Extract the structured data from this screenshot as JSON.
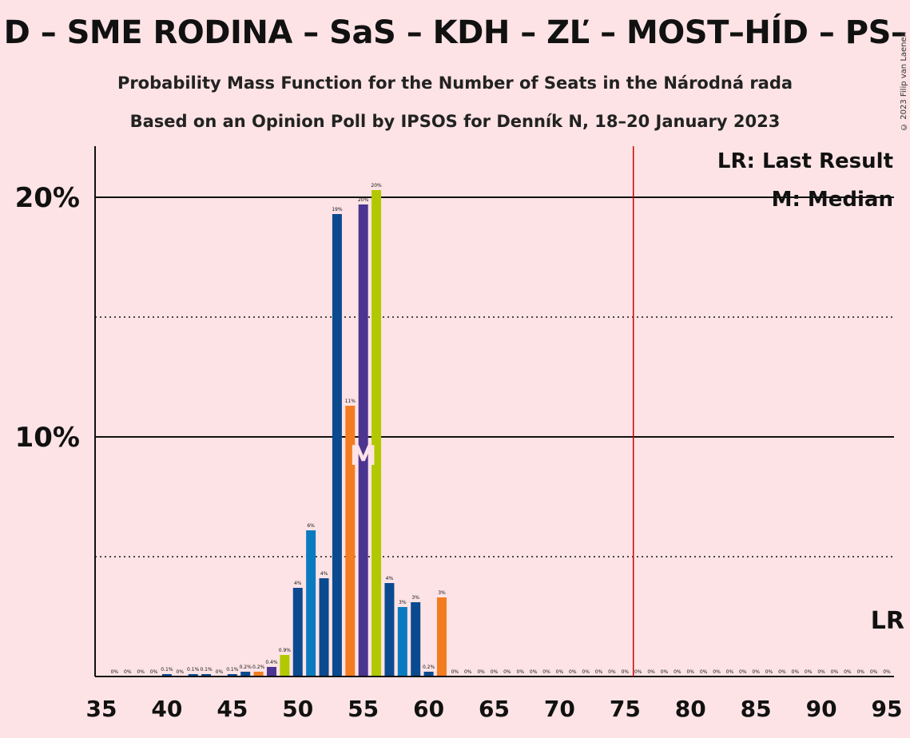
{
  "title": "D – SME RODINA – SaS – KDH – ZĽ – MOST–HÍD – PS–",
  "subtitle1": "Probability Mass Function for the Number of Seats in the Národná rada",
  "subtitle2": "Based on an Opinion Poll by IPSOS for Denník N, 18–20 January 2023",
  "copyright": "© 2023 Filip van Laenen",
  "legend": {
    "lr": "LR: Last Result",
    "median": "M: Median"
  },
  "lr_label": "LR",
  "median_label": "M",
  "colors": {
    "background": "#fde3e5",
    "dark_blue": "#0b4a8f",
    "light_blue": "#0b7bc0",
    "purple": "#4b3590",
    "orange": "#f47c20",
    "lime": "#b2c800",
    "last_result_line": "#cc0000"
  },
  "chart_data": {
    "type": "bar",
    "xlim": [
      35,
      95
    ],
    "ylim": [
      0,
      22
    ],
    "yticks": [
      {
        "value": 10,
        "label": "10%"
      },
      {
        "value": 20,
        "label": "20%"
      }
    ],
    "dotted_lines": [
      5,
      15
    ],
    "xticks": [
      35,
      40,
      45,
      50,
      55,
      60,
      65,
      70,
      75,
      80,
      85,
      90,
      95
    ],
    "last_result": 76,
    "median": 55,
    "bars": [
      {
        "x": 36,
        "value": 0,
        "label": "0%",
        "color": "dark_blue"
      },
      {
        "x": 37,
        "value": 0,
        "label": "0%",
        "color": "dark_blue"
      },
      {
        "x": 38,
        "value": 0,
        "label": "0%",
        "color": "dark_blue"
      },
      {
        "x": 39,
        "value": 0,
        "label": "0%",
        "color": "dark_blue"
      },
      {
        "x": 40,
        "value": 0.1,
        "label": "0.1%",
        "color": "dark_blue"
      },
      {
        "x": 41,
        "value": 0,
        "label": "0%",
        "color": "dark_blue"
      },
      {
        "x": 42,
        "value": 0.1,
        "label": "0.1%",
        "color": "dark_blue"
      },
      {
        "x": 43,
        "value": 0.1,
        "label": "0.1%",
        "color": "dark_blue"
      },
      {
        "x": 44,
        "value": 0,
        "label": "0%",
        "color": "dark_blue"
      },
      {
        "x": 45,
        "value": 0.1,
        "label": "0.1%",
        "color": "dark_blue"
      },
      {
        "x": 46,
        "value": 0.2,
        "label": "0.2%",
        "color": "dark_blue"
      },
      {
        "x": 47,
        "value": 0.2,
        "label": "0.2%",
        "color": "orange"
      },
      {
        "x": 48,
        "value": 0.4,
        "label": "0.4%",
        "color": "purple"
      },
      {
        "x": 49,
        "value": 0.9,
        "label": "0.9%",
        "color": "lime"
      },
      {
        "x": 50,
        "value": 3.7,
        "label": "4%",
        "color": "dark_blue"
      },
      {
        "x": 51,
        "value": 6.1,
        "label": "6%",
        "color": "light_blue"
      },
      {
        "x": 52,
        "value": 4.1,
        "label": "4%",
        "color": "dark_blue"
      },
      {
        "x": 53,
        "value": 19.3,
        "label": "19%",
        "color": "dark_blue"
      },
      {
        "x": 54,
        "value": 11.3,
        "label": "11%",
        "color": "orange"
      },
      {
        "x": 55,
        "value": 19.7,
        "label": "20%",
        "color": "purple"
      },
      {
        "x": 56,
        "value": 20.3,
        "label": "20%",
        "color": "lime"
      },
      {
        "x": 57,
        "value": 3.9,
        "label": "4%",
        "color": "dark_blue"
      },
      {
        "x": 58,
        "value": 2.9,
        "label": "3%",
        "color": "light_blue"
      },
      {
        "x": 59,
        "value": 3.1,
        "label": "3%",
        "color": "dark_blue"
      },
      {
        "x": 60,
        "value": 0.2,
        "label": "0.2%",
        "color": "dark_blue"
      },
      {
        "x": 61,
        "value": 3.3,
        "label": "3%",
        "color": "orange"
      },
      {
        "x": 62,
        "value": 0,
        "label": "0%",
        "color": "dark_blue"
      },
      {
        "x": 63,
        "value": 0,
        "label": "0%",
        "color": "dark_blue"
      },
      {
        "x": 64,
        "value": 0,
        "label": "0%",
        "color": "dark_blue"
      },
      {
        "x": 65,
        "value": 0,
        "label": "0%",
        "color": "dark_blue"
      },
      {
        "x": 66,
        "value": 0,
        "label": "0%",
        "color": "dark_blue"
      },
      {
        "x": 67,
        "value": 0,
        "label": "0%",
        "color": "dark_blue"
      },
      {
        "x": 68,
        "value": 0,
        "label": "0%",
        "color": "dark_blue"
      },
      {
        "x": 69,
        "value": 0,
        "label": "0%",
        "color": "dark_blue"
      },
      {
        "x": 70,
        "value": 0,
        "label": "0%",
        "color": "dark_blue"
      },
      {
        "x": 71,
        "value": 0,
        "label": "0%",
        "color": "dark_blue"
      },
      {
        "x": 72,
        "value": 0,
        "label": "0%",
        "color": "dark_blue"
      },
      {
        "x": 73,
        "value": 0,
        "label": "0%",
        "color": "dark_blue"
      },
      {
        "x": 74,
        "value": 0,
        "label": "0%",
        "color": "dark_blue"
      },
      {
        "x": 75,
        "value": 0,
        "label": "0%",
        "color": "dark_blue"
      },
      {
        "x": 76,
        "value": 0,
        "label": "0%",
        "color": "dark_blue"
      },
      {
        "x": 77,
        "value": 0,
        "label": "0%",
        "color": "dark_blue"
      },
      {
        "x": 78,
        "value": 0,
        "label": "0%",
        "color": "dark_blue"
      },
      {
        "x": 79,
        "value": 0,
        "label": "0%",
        "color": "dark_blue"
      },
      {
        "x": 80,
        "value": 0,
        "label": "0%",
        "color": "dark_blue"
      },
      {
        "x": 81,
        "value": 0,
        "label": "0%",
        "color": "dark_blue"
      },
      {
        "x": 82,
        "value": 0,
        "label": "0%",
        "color": "dark_blue"
      },
      {
        "x": 83,
        "value": 0,
        "label": "0%",
        "color": "dark_blue"
      },
      {
        "x": 84,
        "value": 0,
        "label": "0%",
        "color": "dark_blue"
      },
      {
        "x": 85,
        "value": 0,
        "label": "0%",
        "color": "dark_blue"
      },
      {
        "x": 86,
        "value": 0,
        "label": "0%",
        "color": "dark_blue"
      },
      {
        "x": 87,
        "value": 0,
        "label": "0%",
        "color": "dark_blue"
      },
      {
        "x": 88,
        "value": 0,
        "label": "0%",
        "color": "dark_blue"
      },
      {
        "x": 89,
        "value": 0,
        "label": "0%",
        "color": "dark_blue"
      },
      {
        "x": 90,
        "value": 0,
        "label": "0%",
        "color": "dark_blue"
      },
      {
        "x": 91,
        "value": 0,
        "label": "0%",
        "color": "dark_blue"
      },
      {
        "x": 92,
        "value": 0,
        "label": "0%",
        "color": "dark_blue"
      },
      {
        "x": 93,
        "value": 0,
        "label": "0%",
        "color": "dark_blue"
      },
      {
        "x": 94,
        "value": 0,
        "label": "0%",
        "color": "dark_blue"
      },
      {
        "x": 95,
        "value": 0,
        "label": "0%",
        "color": "dark_blue"
      }
    ]
  }
}
